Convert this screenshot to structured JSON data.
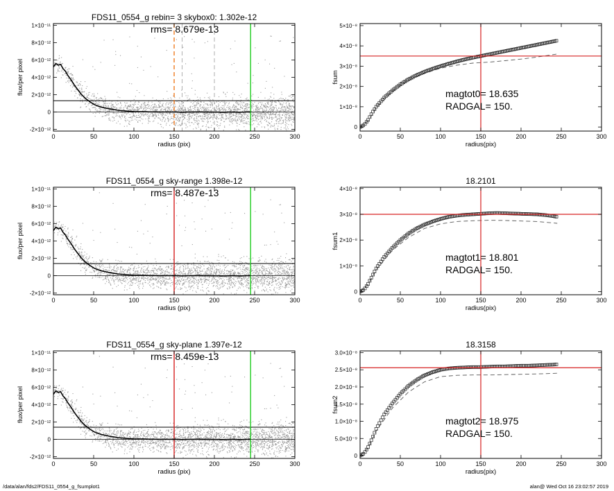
{
  "footer": {
    "path": "/data/alan/fds2/FDS11_0554_g_fsumplot1",
    "stamp": "alan@  Wed Oct 16 23:02:57 2019"
  },
  "colors": {
    "scatter": "#9a9a9a",
    "profile": "#000000",
    "red": "#d62020",
    "green": "#22cc22",
    "orange": "#f07a20",
    "dashed": "#555555"
  },
  "chart_data": [
    {
      "type": "scatter",
      "title": "FDS11_0554_g rebin= 3    skybox0:  1.302e-12",
      "annotation": "rms= 8.679e-13",
      "xlabel": "radius (pix)",
      "ylabel": "flux/per pixel",
      "xlim": [
        0,
        300
      ],
      "ylim": [
        -2.2e-12,
        1.02e-11
      ],
      "xticks": [
        0,
        50,
        100,
        150,
        200,
        250,
        300
      ],
      "yticks": [
        {
          "v": -2e-12,
          "t": "-2×10⁻¹²"
        },
        {
          "v": 0,
          "t": "0"
        },
        {
          "v": 2e-12,
          "t": "2×10⁻¹²"
        },
        {
          "v": 4e-12,
          "t": "4×10⁻¹²"
        },
        {
          "v": 6e-12,
          "t": "6×10⁻¹²"
        },
        {
          "v": 8e-12,
          "t": "8×10⁻¹²"
        },
        {
          "v": 1e-11,
          "t": "1×10⁻¹¹"
        }
      ],
      "hlines": [
        0,
        1.302e-12
      ],
      "vlines": [
        {
          "x": 150,
          "color": "orange",
          "style": "dashed"
        },
        {
          "x": 160,
          "color": "gray",
          "style": "dashed"
        },
        {
          "x": 200,
          "color": "gray",
          "style": "dashed"
        },
        {
          "x": 245,
          "color": "green",
          "style": "solid"
        }
      ],
      "profile": {
        "x": [
          0,
          3,
          6,
          9,
          12,
          15,
          18,
          22,
          26,
          30,
          35,
          40,
          45,
          50,
          55,
          60,
          70,
          80,
          90,
          100,
          110,
          120,
          130,
          140,
          150,
          160,
          170,
          180,
          190,
          200,
          210,
          220,
          230,
          240,
          245
        ],
        "y": [
          5.2e-12,
          5.6e-12,
          5.4e-12,
          5.5e-12,
          5e-12,
          4.7e-12,
          4.2e-12,
          3.7e-12,
          3.1e-12,
          2.6e-12,
          2e-12,
          1.55e-12,
          1.2e-12,
          9e-13,
          7e-13,
          5.5e-13,
          3.5e-13,
          2e-13,
          1.2e-13,
          5e-14,
          3e-14,
          2e-14,
          1e-14,
          0.0,
          1e-14,
          -2e-14,
          0.0,
          2e-14,
          -1e-14,
          0.0,
          -3e-14,
          1e-14,
          -2e-14,
          0.0,
          0.0
        ]
      }
    },
    {
      "type": "line",
      "title": "",
      "annotations": [
        "magtot0=  18.635",
        "RADGAL=    150."
      ],
      "xlabel": "radius(pix)",
      "ylabel": "fsum",
      "xlim": [
        0,
        300
      ],
      "ylim": [
        -2e-09,
        5.1e-08
      ],
      "xticks": [
        0,
        50,
        100,
        150,
        200,
        250,
        300
      ],
      "yticks": [
        {
          "v": 0,
          "t": "0"
        },
        {
          "v": 1e-08,
          "t": "1×10⁻⁸"
        },
        {
          "v": 2e-08,
          "t": "2×10⁻⁸"
        },
        {
          "v": 3e-08,
          "t": "3×10⁻⁸"
        },
        {
          "v": 4e-08,
          "t": "4×10⁻⁸"
        },
        {
          "v": 5e-08,
          "t": "5×10⁻⁸"
        }
      ],
      "hline": 3.5e-08,
      "vline": 150,
      "curve": {
        "x": [
          0,
          5,
          10,
          15,
          20,
          30,
          40,
          50,
          60,
          70,
          80,
          90,
          100,
          110,
          120,
          130,
          140,
          150,
          160,
          170,
          180,
          190,
          200,
          210,
          220,
          230,
          240,
          245
        ],
        "y": [
          0,
          1e-09,
          3.5e-09,
          7e-09,
          1e-08,
          1.45e-08,
          1.8e-08,
          2.1e-08,
          2.35e-08,
          2.55e-08,
          2.72e-08,
          2.87e-08,
          3e-08,
          3.12e-08,
          3.23e-08,
          3.33e-08,
          3.42e-08,
          3.5e-08,
          3.58e-08,
          3.66e-08,
          3.74e-08,
          3.82e-08,
          3.9e-08,
          3.98e-08,
          4.06e-08,
          4.14e-08,
          4.22e-08,
          4.26e-08
        ]
      },
      "dashed_curve": {
        "x": [
          0,
          10,
          20,
          40,
          60,
          80,
          100,
          120,
          140,
          160,
          180,
          200,
          220,
          245
        ],
        "y": [
          0,
          3e-09,
          9.5e-09,
          1.75e-08,
          2.3e-08,
          2.65e-08,
          2.9e-08,
          3.05e-08,
          3.15e-08,
          3.2e-08,
          3.27e-08,
          3.35e-08,
          3.45e-08,
          3.6e-08
        ]
      }
    },
    {
      "type": "scatter",
      "title": "FDS11_0554_g sky-range  1.398e-12",
      "annotation": "rms= 8.487e-13",
      "xlabel": "radius (pix)",
      "ylabel": "flux/per pixel",
      "xlim": [
        0,
        300
      ],
      "ylim": [
        -2.2e-12,
        1.02e-11
      ],
      "xticks": [
        0,
        50,
        100,
        150,
        200,
        250,
        300
      ],
      "yticks": [
        {
          "v": -2e-12,
          "t": "-2×10⁻¹²"
        },
        {
          "v": 0,
          "t": "0"
        },
        {
          "v": 2e-12,
          "t": "2×10⁻¹²"
        },
        {
          "v": 4e-12,
          "t": "4×10⁻¹²"
        },
        {
          "v": 6e-12,
          "t": "6×10⁻¹²"
        },
        {
          "v": 8e-12,
          "t": "8×10⁻¹²"
        },
        {
          "v": 1e-11,
          "t": "1×10⁻¹¹"
        }
      ],
      "hlines": [
        0,
        1.398e-12
      ],
      "vlines": [
        {
          "x": 150,
          "color": "red",
          "style": "solid"
        },
        {
          "x": 245,
          "color": "green",
          "style": "solid"
        }
      ],
      "profile": {
        "x": [
          0,
          3,
          6,
          9,
          12,
          15,
          18,
          22,
          26,
          30,
          35,
          40,
          45,
          50,
          55,
          60,
          70,
          80,
          90,
          100,
          110,
          120,
          130,
          140,
          150,
          160,
          170,
          180,
          190,
          200,
          210,
          220,
          230,
          240,
          245
        ],
        "y": [
          5.2e-12,
          5.6e-12,
          5.4e-12,
          5.5e-12,
          5e-12,
          4.7e-12,
          4.2e-12,
          3.7e-12,
          3.1e-12,
          2.6e-12,
          2e-12,
          1.55e-12,
          1.2e-12,
          9e-13,
          7e-13,
          5.5e-13,
          3.5e-13,
          2e-13,
          1.2e-13,
          5e-14,
          3e-14,
          2e-14,
          1e-14,
          0.0,
          1e-14,
          -2e-14,
          0.0,
          2e-14,
          -1e-14,
          0.0,
          -3e-14,
          1e-14,
          -2e-14,
          0.0,
          0.0
        ]
      }
    },
    {
      "type": "line",
      "title": "18.2101",
      "annotations": [
        "magtot1=  18.801",
        "RADGAL=    150."
      ],
      "xlabel": "radius(pix)",
      "ylabel": "fsum1",
      "xlim": [
        0,
        300
      ],
      "ylim": [
        -1.2e-09,
        4.05e-08
      ],
      "xticks": [
        0,
        50,
        100,
        150,
        200,
        250,
        300
      ],
      "yticks": [
        {
          "v": 0,
          "t": "0"
        },
        {
          "v": 1e-08,
          "t": "1×10⁻⁸"
        },
        {
          "v": 2e-08,
          "t": "2×10⁻⁸"
        },
        {
          "v": 3e-08,
          "t": "3×10⁻⁸"
        },
        {
          "v": 4e-08,
          "t": "4×10⁻⁸"
        }
      ],
      "hline": 3e-08,
      "vline": 150,
      "curve": {
        "x": [
          0,
          5,
          10,
          15,
          20,
          30,
          40,
          50,
          60,
          70,
          80,
          90,
          100,
          110,
          120,
          130,
          140,
          150,
          160,
          170,
          180,
          190,
          200,
          210,
          220,
          230,
          240,
          245
        ],
        "y": [
          0,
          8e-10,
          3e-09,
          6e-09,
          9e-09,
          1.35e-08,
          1.7e-08,
          2e-08,
          2.25e-08,
          2.45e-08,
          2.6e-08,
          2.72e-08,
          2.82e-08,
          2.9e-08,
          2.95e-08,
          2.98e-08,
          3e-08,
          3.02e-08,
          3.04e-08,
          3.05e-08,
          3.04e-08,
          3.03e-08,
          3.02e-08,
          3.01e-08,
          3e-08,
          2.97e-08,
          2.93e-08,
          2.9e-08
        ]
      },
      "dashed_curve": {
        "x": [
          0,
          10,
          20,
          40,
          60,
          80,
          100,
          120,
          140,
          160,
          180,
          200,
          220,
          245
        ],
        "y": [
          0,
          2.8e-09,
          8.5e-09,
          1.6e-08,
          2.1e-08,
          2.45e-08,
          2.63e-08,
          2.72e-08,
          2.75e-08,
          2.77e-08,
          2.76e-08,
          2.74e-08,
          2.72e-08,
          2.65e-08
        ]
      }
    },
    {
      "type": "scatter",
      "title": "FDS11_0554_g sky-plane  1.397e-12",
      "annotation": "rms= 8.459e-13",
      "xlabel": "radius (pix)",
      "ylabel": "flux/per pixel",
      "xlim": [
        0,
        300
      ],
      "ylim": [
        -2.2e-12,
        1.02e-11
      ],
      "xticks": [
        0,
        50,
        100,
        150,
        200,
        250,
        300
      ],
      "yticks": [
        {
          "v": -2e-12,
          "t": "-2×10⁻¹²"
        },
        {
          "v": 0,
          "t": "0"
        },
        {
          "v": 2e-12,
          "t": "2×10⁻¹²"
        },
        {
          "v": 4e-12,
          "t": "4×10⁻¹²"
        },
        {
          "v": 6e-12,
          "t": "6×10⁻¹²"
        },
        {
          "v": 8e-12,
          "t": "8×10⁻¹²"
        },
        {
          "v": 1e-11,
          "t": "1×10⁻¹¹"
        }
      ],
      "hlines": [
        0,
        1.397e-12
      ],
      "vlines": [
        {
          "x": 150,
          "color": "red",
          "style": "solid"
        },
        {
          "x": 245,
          "color": "green",
          "style": "solid"
        }
      ],
      "profile": {
        "x": [
          0,
          3,
          6,
          9,
          12,
          15,
          18,
          22,
          26,
          30,
          35,
          40,
          45,
          50,
          55,
          60,
          70,
          80,
          90,
          100,
          110,
          120,
          130,
          140,
          150,
          160,
          170,
          180,
          190,
          200,
          210,
          220,
          230,
          240,
          245
        ],
        "y": [
          5.2e-12,
          5.6e-12,
          5.4e-12,
          5.5e-12,
          5e-12,
          4.7e-12,
          4.2e-12,
          3.7e-12,
          3.1e-12,
          2.6e-12,
          2e-12,
          1.55e-12,
          1.2e-12,
          9e-13,
          7e-13,
          5.5e-13,
          3.5e-13,
          2e-13,
          1.2e-13,
          5e-14,
          3e-14,
          2e-14,
          1e-14,
          0.0,
          1e-14,
          -2e-14,
          0.0,
          2e-14,
          -1e-14,
          0.0,
          -3e-14,
          1e-14,
          -2e-14,
          0.0,
          0.0
        ]
      }
    },
    {
      "type": "line",
      "title": "18.3158",
      "annotations": [
        "magtot2=  18.975",
        "RADGAL=    150."
      ],
      "xlabel": "radius(pix)",
      "ylabel": "fsum2",
      "xlim": [
        0,
        300
      ],
      "ylim": [
        -8e-10,
        3.05e-08
      ],
      "xticks": [
        0,
        50,
        100,
        150,
        200,
        250,
        300
      ],
      "yticks": [
        {
          "v": 0,
          "t": "0"
        },
        {
          "v": 5e-09,
          "t": "5.0×10⁻⁹"
        },
        {
          "v": 1e-08,
          "t": "1.0×10⁻⁸"
        },
        {
          "v": 1.5e-08,
          "t": "1.5×10⁻⁸"
        },
        {
          "v": 2e-08,
          "t": "2.0×10⁻⁸"
        },
        {
          "v": 2.5e-08,
          "t": "2.5×10⁻⁸"
        },
        {
          "v": 3e-08,
          "t": "3.0×10⁻⁸"
        }
      ],
      "hline": 2.56e-08,
      "vline": 150,
      "curve": {
        "x": [
          0,
          5,
          10,
          15,
          20,
          30,
          40,
          50,
          60,
          70,
          80,
          90,
          100,
          110,
          120,
          130,
          140,
          150,
          160,
          170,
          180,
          190,
          200,
          210,
          220,
          230,
          240,
          245
        ],
        "y": [
          0,
          7e-10,
          2.5e-09,
          5e-09,
          7.8e-09,
          1.2e-08,
          1.52e-08,
          1.8e-08,
          2.03e-08,
          2.2e-08,
          2.34e-08,
          2.43e-08,
          2.5e-08,
          2.54e-08,
          2.56e-08,
          2.57e-08,
          2.58e-08,
          2.58e-08,
          2.59e-08,
          2.6e-08,
          2.6e-08,
          2.61e-08,
          2.62e-08,
          2.62e-08,
          2.63e-08,
          2.64e-08,
          2.65e-08,
          2.66e-08
        ]
      },
      "dashed_curve": {
        "x": [
          0,
          10,
          20,
          40,
          60,
          80,
          100,
          120,
          140,
          160,
          180,
          200,
          220,
          245
        ],
        "y": [
          0,
          2.2e-09,
          7.2e-09,
          1.38e-08,
          1.85e-08,
          2.15e-08,
          2.3e-08,
          2.34e-08,
          2.35e-08,
          2.35e-08,
          2.36e-08,
          2.37e-08,
          2.38e-08,
          2.4e-08
        ]
      }
    }
  ]
}
